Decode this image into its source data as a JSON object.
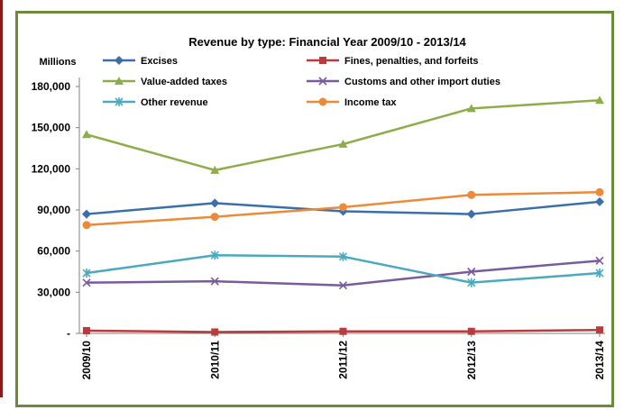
{
  "chart_data": {
    "type": "line",
    "title": "Revenue by type: Financial Year 2009/10 - 2013/14",
    "ylabel": "Millions",
    "xlabel": "",
    "categories": [
      "2009/10",
      "2010/11",
      "2011/12",
      "2012/13",
      "2013/14"
    ],
    "ylim": [
      0,
      180000
    ],
    "yticks": [
      {
        "value": 0,
        "label": "-"
      },
      {
        "value": 30000,
        "label": "30,000"
      },
      {
        "value": 60000,
        "label": "60,000"
      },
      {
        "value": 90000,
        "label": "90,000"
      },
      {
        "value": 120000,
        "label": "120,000"
      },
      {
        "value": 150000,
        "label": "150,000"
      },
      {
        "value": 180000,
        "label": "180,000"
      }
    ],
    "grid": false,
    "legend_position": "top",
    "series": [
      {
        "name": "Excises",
        "color": "#3b6eae",
        "marker": "diamond",
        "values": [
          87000,
          95000,
          89000,
          87000,
          96000
        ]
      },
      {
        "name": "Fines, penalties, and forfeits",
        "color": "#b83c3c",
        "marker": "square",
        "values": [
          2000,
          1000,
          1500,
          1500,
          2500
        ]
      },
      {
        "name": "Value-added taxes",
        "color": "#8cad4a",
        "marker": "triangle",
        "values": [
          145000,
          119000,
          138000,
          164000,
          170000
        ]
      },
      {
        "name": "Customs and other import duties",
        "color": "#7a5a9e",
        "marker": "x",
        "values": [
          37000,
          38000,
          35000,
          45000,
          53000
        ]
      },
      {
        "name": "Other revenue",
        "color": "#4aa9bf",
        "marker": "asterisk",
        "values": [
          44000,
          57000,
          56000,
          37000,
          44000
        ]
      },
      {
        "name": "Income tax",
        "color": "#ec8a3a",
        "marker": "circle",
        "values": [
          79000,
          85000,
          92000,
          101000,
          103000
        ]
      }
    ]
  }
}
